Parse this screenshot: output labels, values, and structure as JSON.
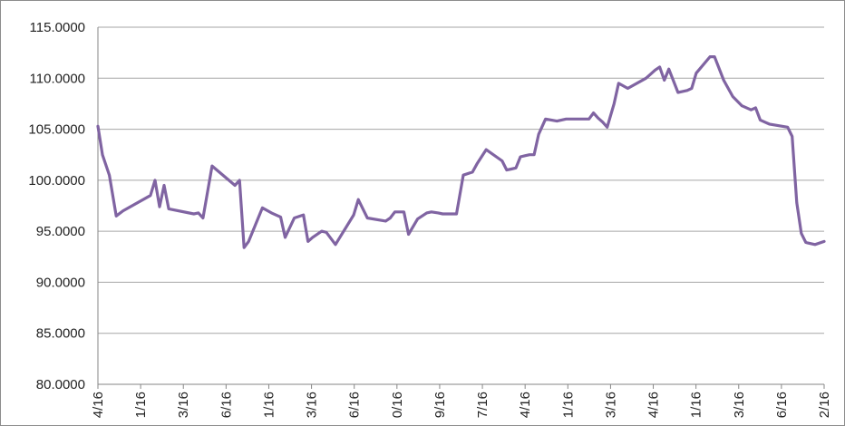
{
  "chart_data": {
    "type": "line",
    "title": "",
    "xlabel": "",
    "ylabel": "",
    "ylim": [
      80,
      115
    ],
    "y_ticks": [
      "80.0000",
      "85.0000",
      "90.0000",
      "95.0000",
      "100.0000",
      "105.0000",
      "110.0000",
      "115.0000"
    ],
    "x_ticks": [
      "4/16",
      "1/16",
      "3/16",
      "6/16",
      "1/16",
      "3/16",
      "6/16",
      "0/16",
      "9/16",
      "7/16",
      "4/16",
      "1/16",
      "3/16",
      "4/16",
      "1/16",
      "3/16",
      "6/16",
      "2/16"
    ],
    "grid": true,
    "legend": "none",
    "colors": {
      "line": "#8064A2",
      "grid": "#a6a6a6",
      "axis": "#868686",
      "frame": "#8c8c8c"
    },
    "series": [
      {
        "x": [
          0,
          2,
          5,
          8,
          11,
          23,
          25,
          27,
          29,
          31,
          42,
          44,
          46,
          50,
          60,
          62,
          64,
          66,
          72,
          76,
          80,
          82,
          86,
          90,
          92,
          94,
          98,
          100,
          104,
          112,
          114,
          118,
          126,
          128,
          130,
          134,
          136,
          140,
          144,
          146,
          149,
          151,
          157,
          160,
          164,
          166,
          170,
          177,
          179,
          181,
          183,
          185,
          187,
          189,
          191,
          193,
          196,
          201,
          205,
          207,
          215,
          217,
          219,
          221,
          223,
          226,
          228,
          232,
          240,
          242,
          244,
          246,
          248,
          250,
          254,
          256,
          258,
          260,
          262,
          268,
          270,
          274,
          276,
          278,
          282,
          286,
          288,
          290,
          292,
          294,
          302,
          304,
          306,
          308,
          310,
          312,
          314,
          318
        ],
        "y": [
          105.3,
          102.5,
          100.5,
          96.5,
          97.0,
          98.5,
          100.0,
          97.4,
          99.5,
          97.2,
          96.7,
          96.8,
          96.3,
          101.4,
          99.5,
          100.0,
          93.4,
          94.0,
          97.3,
          96.8,
          96.4,
          94.4,
          96.3,
          96.6,
          94.0,
          94.4,
          95.0,
          94.9,
          93.7,
          96.6,
          98.1,
          96.3,
          96.0,
          96.3,
          96.9,
          96.9,
          94.7,
          96.2,
          96.8,
          96.9,
          96.8,
          96.7,
          96.7,
          100.5,
          100.8,
          101.6,
          103.0,
          101.9,
          101.0,
          101.1,
          101.2,
          102.3,
          102.4,
          102.5,
          102.5,
          104.5,
          106.0,
          105.8,
          106.0,
          106.0,
          106.0,
          106.6,
          106.1,
          105.7,
          105.2,
          107.5,
          109.5,
          109.0,
          110.0,
          110.4,
          110.8,
          111.1,
          109.8,
          110.9,
          108.6,
          108.7,
          108.8,
          109.0,
          110.5,
          112.1,
          112.1,
          109.8,
          109.0,
          108.2,
          107.3,
          106.9,
          107.1,
          105.9,
          105.7,
          105.5,
          105.2,
          104.3,
          97.8,
          94.8,
          93.9,
          93.8,
          93.7,
          94.0
        ]
      }
    ]
  }
}
